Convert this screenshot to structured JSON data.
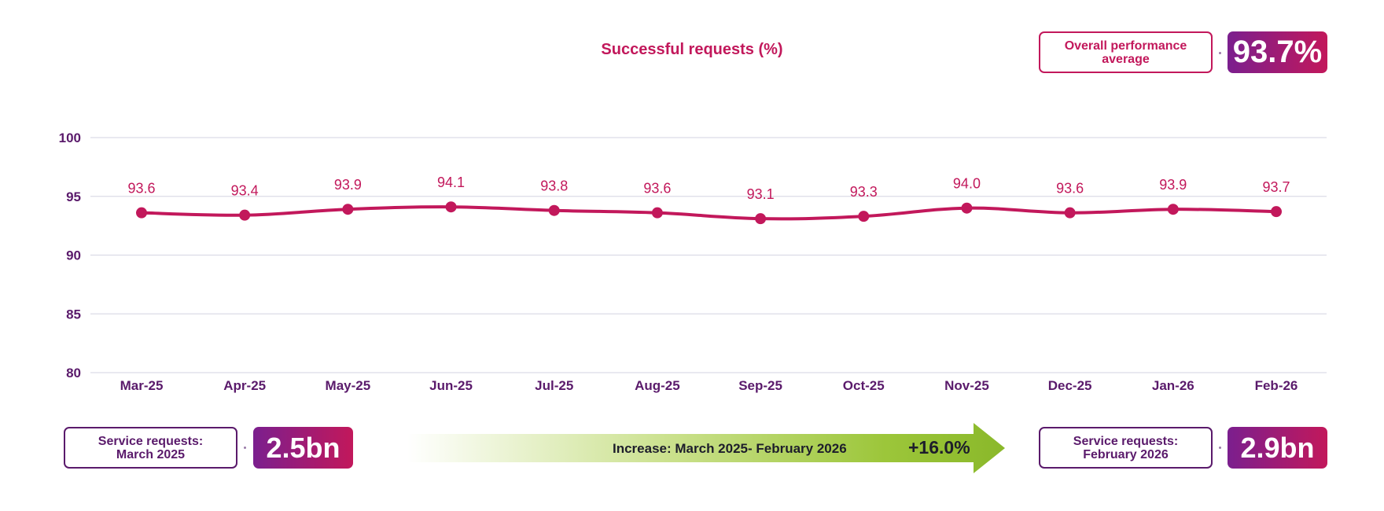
{
  "chart_data": {
    "type": "line",
    "title": "Successful requests (%)",
    "xlabel": "",
    "ylabel": "",
    "categories": [
      "Mar-25",
      "Apr-25",
      "May-25",
      "Jun-25",
      "Jul-25",
      "Aug-25",
      "Sep-25",
      "Oct-25",
      "Nov-25",
      "Dec-25",
      "Jan-26",
      "Feb-26"
    ],
    "values": [
      93.6,
      93.4,
      93.9,
      94.1,
      93.8,
      93.6,
      93.1,
      93.3,
      94.0,
      93.6,
      93.9,
      93.7
    ],
    "data_labels": [
      "93.6",
      "93.4",
      "93.9",
      "94.1",
      "93.8",
      "93.6",
      "93.1",
      "93.3",
      "94.0",
      "93.6",
      "93.9",
      "93.7"
    ],
    "ylim": [
      80,
      100
    ],
    "yticks": [
      80,
      85,
      90,
      95,
      100
    ],
    "grid": true,
    "colors": {
      "line": "#c2185b",
      "grid": "#dcdce6",
      "axis_text": "#5a1a6b"
    }
  },
  "summary": {
    "overall_label_line1": "Overall performance",
    "overall_label_line2": "average",
    "overall_value": "93.7%",
    "start_label_line1": "Service requests:",
    "start_label_line2": "March 2025",
    "start_value": "2.5bn",
    "end_label_line1": "Service requests:",
    "end_label_line2": "February 2026",
    "end_value": "2.9bn",
    "increase_text": "Increase: March 2025- February 2026",
    "increase_value": "+16.0%"
  }
}
